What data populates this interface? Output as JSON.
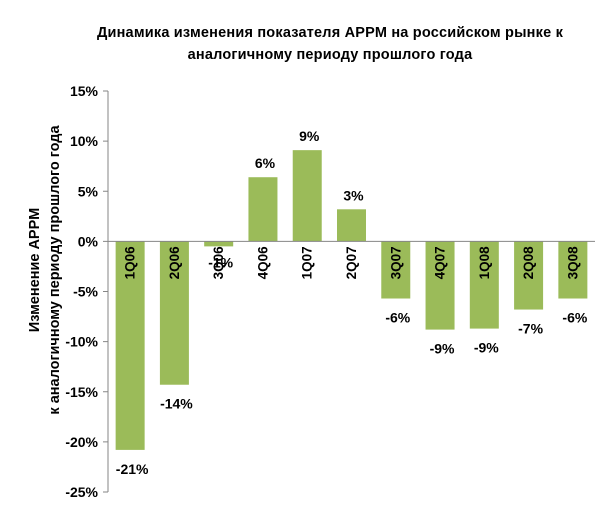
{
  "chart_data": {
    "type": "bar",
    "title": [
      "Динамика изменения показателя АРРМ на российском рынке к",
      "аналогичному периоду прошлого года"
    ],
    "ylabel": [
      "Изменение АРРМ",
      "к аналогичному периоду прошлого года"
    ],
    "xlabel": "",
    "categories": [
      "1Q06",
      "2Q06",
      "3Q06",
      "4Q06",
      "1Q07",
      "2Q07",
      "3Q07",
      "4Q07",
      "1Q08",
      "2Q08",
      "3Q08"
    ],
    "values": [
      -21,
      -14,
      -1,
      6,
      9,
      3,
      -6,
      -9,
      -9,
      -7,
      -6
    ],
    "bar_heights": [
      -20.8,
      -14.3,
      -0.5,
      6.4,
      9.1,
      3.2,
      -5.7,
      -8.8,
      -8.7,
      -6.8,
      -5.7
    ],
    "data_labels": [
      "-21%",
      "-14%",
      "-1%",
      "6%",
      "9%",
      "3%",
      "-6%",
      "-9%",
      "-9%",
      "-7%",
      "-6%"
    ],
    "yticks": [
      15,
      10,
      5,
      0,
      -5,
      -10,
      -15,
      -20,
      -25
    ],
    "ytick_labels": [
      "15%",
      "10%",
      "5%",
      "0%",
      "-5%",
      "-10%",
      "-15%",
      "-20%",
      "-25%"
    ],
    "ylim": [
      -25,
      15
    ],
    "grid": false,
    "legend": "none",
    "bar_color": "#9bbb59"
  }
}
